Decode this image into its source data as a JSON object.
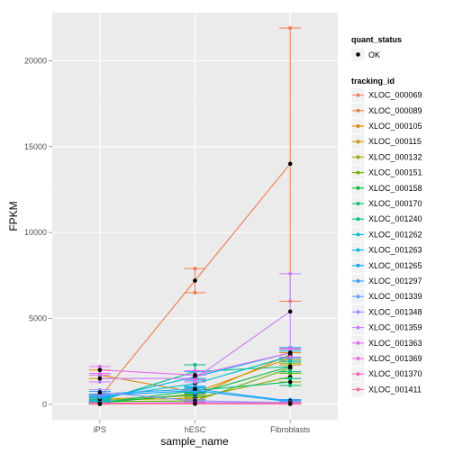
{
  "chart_data": {
    "type": "line",
    "xlabel": "sample_name",
    "ylabel": "FPKM",
    "categories": [
      "iPS",
      "hESC",
      "Fibroblasts"
    ],
    "ylim": [
      -900,
      22800
    ],
    "yticks": [
      0,
      5000,
      10000,
      15000,
      20000
    ],
    "grid": true,
    "legend_position": "right",
    "legend_groups": [
      {
        "title": "quant_status",
        "entries": [
          "OK"
        ]
      },
      {
        "title": "tracking_id",
        "entries": []
      }
    ],
    "series": [
      {
        "name": "XLOC_000069",
        "color": "#F8766D",
        "values": [
          30,
          40,
          120
        ],
        "lower": [
          10,
          20,
          60
        ],
        "upper": [
          50,
          60,
          200
        ]
      },
      {
        "name": "XLOC_000089",
        "color": "#F07B4A",
        "values": [
          400,
          7200,
          14000
        ],
        "lower": [
          250,
          6500,
          6000
        ],
        "upper": [
          550,
          7900,
          21900
        ]
      },
      {
        "name": "XLOC_000105",
        "color": "#E38900",
        "values": [
          1700,
          700,
          2700
        ],
        "lower": [
          1500,
          600,
          2300
        ],
        "upper": [
          2000,
          850,
          3000
        ]
      },
      {
        "name": "XLOC_000115",
        "color": "#C99800",
        "values": [
          300,
          500,
          2900
        ],
        "lower": [
          200,
          400,
          2600
        ],
        "upper": [
          400,
          600,
          3200
        ]
      },
      {
        "name": "XLOC_000132",
        "color": "#A3A500",
        "values": [
          250,
          350,
          1600
        ],
        "lower": [
          180,
          280,
          1300
        ],
        "upper": [
          320,
          420,
          1900
        ]
      },
      {
        "name": "XLOC_000151",
        "color": "#6BB100",
        "values": [
          150,
          200,
          2100
        ],
        "lower": [
          100,
          150,
          1800
        ],
        "upper": [
          200,
          250,
          2400
        ]
      },
      {
        "name": "XLOC_000158",
        "color": "#00BA38",
        "values": [
          80,
          600,
          2200
        ],
        "lower": [
          50,
          500,
          1900
        ],
        "upper": [
          110,
          700,
          2500
        ]
      },
      {
        "name": "XLOC_000170",
        "color": "#00BF6F",
        "values": [
          100,
          800,
          1300
        ],
        "lower": [
          60,
          650,
          1100
        ],
        "upper": [
          140,
          950,
          1500
        ]
      },
      {
        "name": "XLOC_001240",
        "color": "#00C08B",
        "values": [
          200,
          1900,
          2200
        ],
        "lower": [
          150,
          1500,
          1900
        ],
        "upper": [
          260,
          2300,
          2500
        ]
      },
      {
        "name": "XLOC_001262",
        "color": "#00BFC4",
        "values": [
          400,
          1200,
          2800
        ],
        "lower": [
          300,
          1000,
          2500
        ],
        "upper": [
          500,
          1400,
          3100
        ]
      },
      {
        "name": "XLOC_001263",
        "color": "#00B4F0",
        "values": [
          300,
          1600,
          3000
        ],
        "lower": [
          200,
          1300,
          2700
        ],
        "upper": [
          400,
          1900,
          3300
        ]
      },
      {
        "name": "XLOC_001265",
        "color": "#00A9FF",
        "values": [
          500,
          800,
          150
        ],
        "lower": [
          400,
          650,
          80
        ],
        "upper": [
          600,
          950,
          220
        ]
      },
      {
        "name": "XLOC_001297",
        "color": "#35A2FF",
        "values": [
          600,
          900,
          200
        ],
        "lower": [
          450,
          750,
          130
        ],
        "upper": [
          750,
          1050,
          280
        ]
      },
      {
        "name": "XLOC_001339",
        "color": "#619CFF",
        "values": [
          50,
          100,
          80
        ],
        "lower": [
          20,
          60,
          40
        ],
        "upper": [
          80,
          140,
          120
        ]
      },
      {
        "name": "XLOC_001348",
        "color": "#9590FF",
        "values": [
          700,
          200,
          100
        ],
        "lower": [
          550,
          140,
          60
        ],
        "upper": [
          850,
          260,
          140
        ]
      },
      {
        "name": "XLOC_001359",
        "color": "#C77CFF",
        "values": [
          1500,
          1500,
          5400
        ],
        "lower": [
          1300,
          1300,
          3200
        ],
        "upper": [
          1700,
          1700,
          7600
        ]
      },
      {
        "name": "XLOC_001363",
        "color": "#E76BF3",
        "values": [
          2000,
          1700,
          3000
        ],
        "lower": [
          1800,
          1450,
          2750
        ],
        "upper": [
          2200,
          1950,
          3250
        ]
      },
      {
        "name": "XLOC_001369",
        "color": "#F564E3",
        "values": [
          60,
          80,
          60
        ],
        "lower": [
          30,
          50,
          30
        ],
        "upper": [
          90,
          110,
          90
        ]
      },
      {
        "name": "XLOC_001370",
        "color": "#FF61C3",
        "values": [
          40,
          50,
          30
        ],
        "lower": [
          20,
          30,
          15
        ],
        "upper": [
          60,
          70,
          45
        ]
      },
      {
        "name": "XLOC_001411",
        "color": "#FF6C91",
        "values": [
          20,
          30,
          20
        ],
        "lower": [
          10,
          15,
          10
        ],
        "upper": [
          30,
          45,
          30
        ]
      }
    ]
  }
}
